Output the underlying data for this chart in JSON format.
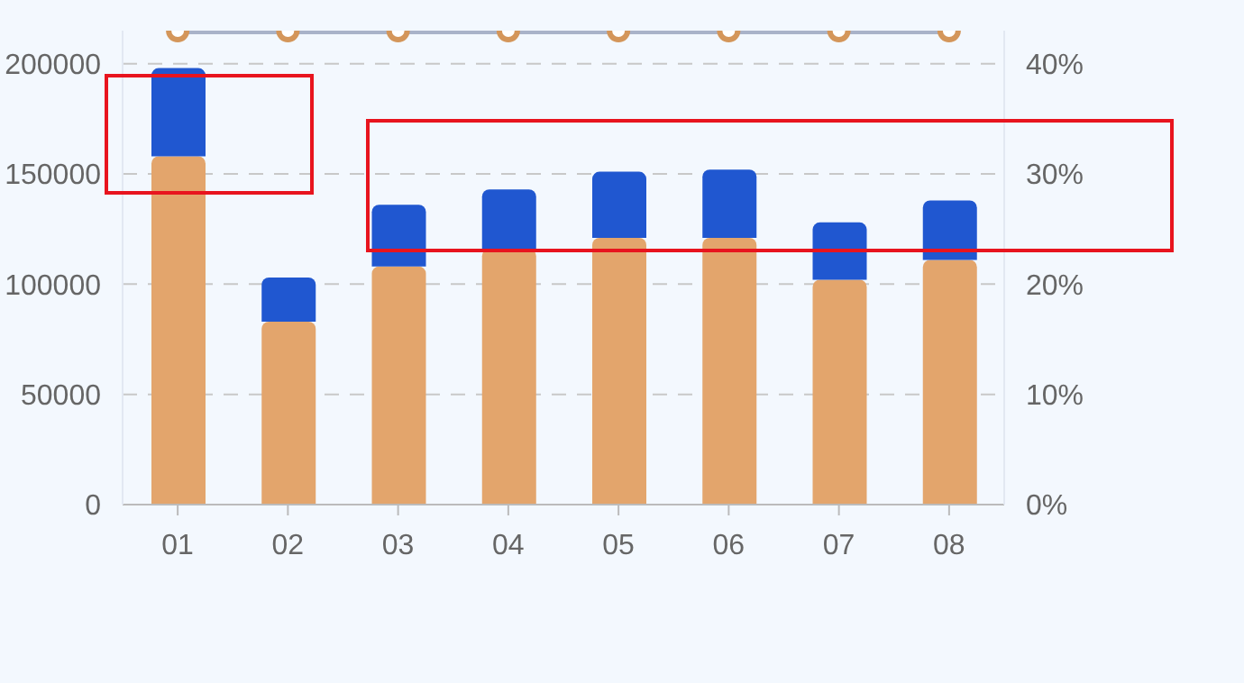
{
  "chart_data": {
    "type": "bar",
    "categories": [
      "01",
      "02",
      "03",
      "04",
      "05",
      "06",
      "07",
      "08"
    ],
    "series": [
      {
        "color": "#e3a56c",
        "values": [
          158000,
          83000,
          108000,
          116000,
          121000,
          121000,
          102000,
          111000
        ]
      },
      {
        "color": "#2057d0",
        "values": [
          40000,
          20000,
          28000,
          27000,
          30000,
          31000,
          26000,
          27000
        ]
      },
      {
        "type": "line",
        "axis": "y2",
        "color": "#a9b3c9",
        "values": [
          43,
          43,
          43,
          43,
          43,
          43,
          43,
          43
        ]
      }
    ],
    "ylim": [
      0,
      215000
    ],
    "yticks": [
      0,
      50000,
      100000,
      150000,
      200000
    ],
    "y2lim": [
      0,
      43
    ],
    "y2ticks": [
      {
        "value": 0,
        "label": "0%"
      },
      {
        "value": 10,
        "label": "10%"
      },
      {
        "value": 20,
        "label": "20%"
      },
      {
        "value": 30,
        "label": "30%"
      },
      {
        "value": 40,
        "label": "40%"
      }
    ],
    "stacked": true,
    "grid": "y",
    "marker": "circle",
    "line_style": "solid"
  }
}
